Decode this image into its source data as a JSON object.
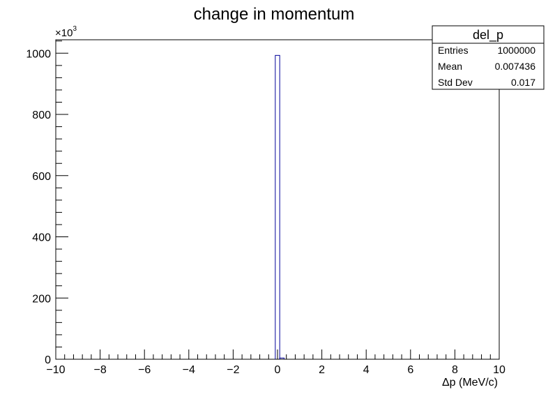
{
  "chart_data": {
    "type": "bar",
    "title": "change in momentum",
    "xlabel": "Δp (MeV/c)",
    "ylabel": "",
    "y_exponent_label": "×10",
    "y_exponent_power": "3",
    "xlim": [
      -10,
      10
    ],
    "ylim": [
      0,
      1044
    ],
    "x_ticks": [
      -10,
      -8,
      -6,
      -4,
      -2,
      0,
      2,
      4,
      6,
      8,
      10
    ],
    "x_tick_labels": [
      "−10",
      "−8",
      "−6",
      "−4",
      "−2",
      "0",
      "2",
      "4",
      "6",
      "8",
      "10"
    ],
    "y_ticks": [
      0,
      200,
      400,
      600,
      800,
      1000
    ],
    "y_tick_labels": [
      "0",
      "200",
      "400",
      "600",
      "800",
      "1000"
    ],
    "bin_width": 0.2,
    "bins": [
      {
        "x_low": -0.1,
        "x_high": 0.1,
        "value": 993
      },
      {
        "x_low": 0.1,
        "x_high": 0.3,
        "value": 4
      }
    ],
    "line_color": "#000099",
    "grid": false,
    "legend": "none"
  },
  "stats_box": {
    "title": "del_p",
    "rows": [
      {
        "label": "Entries",
        "value": "1000000"
      },
      {
        "label": "Mean",
        "value": "0.007436"
      },
      {
        "label": "Std Dev",
        "value": "0.017"
      }
    ]
  }
}
